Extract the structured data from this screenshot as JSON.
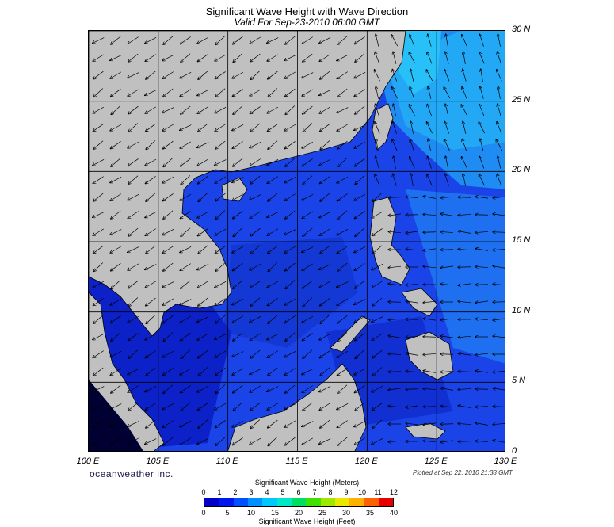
{
  "header": {
    "title": "Significant Wave Height with Wave Direction",
    "subtitle": "Valid For Sep-23-2010 06:00 GMT"
  },
  "map": {
    "latitude_labels": [
      "30 N",
      "25 N",
      "20 N",
      "15 N",
      "10 N",
      "5 N",
      "0"
    ],
    "longitude_labels": [
      "100 E",
      "105 E",
      "110 E",
      "115 E",
      "120 E",
      "125 E",
      "130 E"
    ],
    "lat_range": [
      0,
      30
    ],
    "lon_range": [
      100,
      130
    ],
    "land_color": "#c0c0c0",
    "ocean_base_color": "#1a44e8"
  },
  "footer": {
    "brand": "oceanweather inc.",
    "plotted": "Plotted at Sep 22, 2010 21:38 GMT"
  },
  "colorbar": {
    "meters_caption": "Significant Wave Height (Meters)",
    "feet_caption": "Significant Wave Height (Feet)",
    "meter_ticks": [
      "0",
      "1",
      "2",
      "3",
      "4",
      "5",
      "6",
      "7",
      "8",
      "9",
      "10",
      "11",
      "12"
    ],
    "feet_ticks": [
      "0",
      "5",
      "10",
      "15",
      "20",
      "25",
      "30",
      "35",
      "40"
    ],
    "colors": [
      "#0000c8",
      "#0018f0",
      "#0050ff",
      "#0090ff",
      "#00c8ff",
      "#00e8c8",
      "#00e060",
      "#40e000",
      "#a0e800",
      "#e8e800",
      "#ffb000",
      "#ff6000",
      "#e80000"
    ]
  }
}
